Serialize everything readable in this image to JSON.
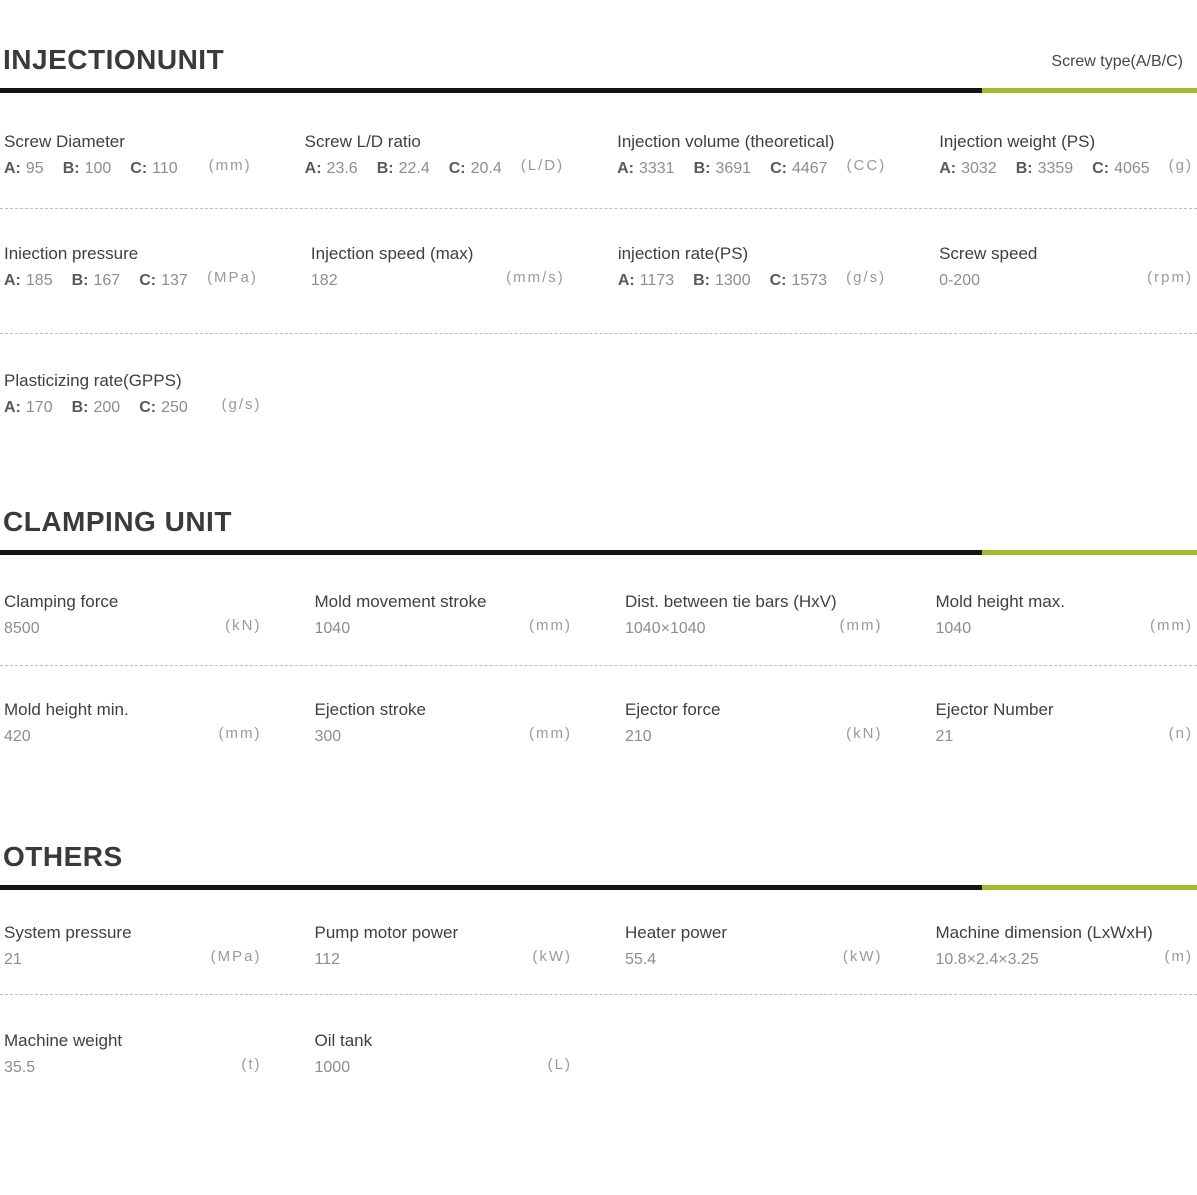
{
  "page": {
    "screw_type_note": "Screw type(A/B/C)",
    "accent_color": "#9dbe2b",
    "rule_color": "#141414"
  },
  "abc_prefixes": {
    "a": "A:",
    "b": "B:",
    "c": "C:"
  },
  "sections": [
    {
      "title": "INJECTIONUNIT",
      "rows": [
        [
          {
            "label": "Screw Diameter",
            "a": "95",
            "b": "100",
            "c": "110",
            "unit": "(mm)"
          },
          {
            "label": "Screw L/D ratio",
            "a": "23.6",
            "b": "22.4",
            "c": "20.4",
            "unit": "(L/D)"
          },
          {
            "label": "Injection volume (theoretical)",
            "a": "3331",
            "b": "3691",
            "c": "4467",
            "unit": "(CC)"
          },
          {
            "label": "Injection weight (PS)",
            "a": "3032",
            "b": "3359",
            "c": "4065",
            "unit": "(g)"
          }
        ],
        [
          {
            "label": "Iniection pressure",
            "a": "185",
            "b": "167",
            "c": "137",
            "unit": "(MPa)"
          },
          {
            "label": "Injection speed (max)",
            "value": "182",
            "unit": "(mm/s)"
          },
          {
            "label": "injection rate(PS)",
            "a": "1173",
            "b": "1300",
            "c": "1573",
            "unit": "(g/s)"
          },
          {
            "label": "Screw speed",
            "value": "0-200",
            "unit": "(rpm)"
          }
        ],
        [
          {
            "label": "Plasticizing rate(GPPS)",
            "a": "170",
            "b": "200",
            "c": "250",
            "unit": "(g/s)"
          }
        ]
      ]
    },
    {
      "title": "CLAMPING UNIT",
      "rows": [
        [
          {
            "label": "Clamping force",
            "value": "8500",
            "unit": "(kN)"
          },
          {
            "label": "Mold movement stroke",
            "value": "1040",
            "unit": "(mm)"
          },
          {
            "label": "Dist. between tie bars (HxV)",
            "value": "1040×1040",
            "unit": "(mm)"
          },
          {
            "label": "Mold height max.",
            "value": "1040",
            "unit": "(mm)"
          }
        ],
        [
          {
            "label": "Mold height min.",
            "value": "420",
            "unit": "(mm)"
          },
          {
            "label": "Ejection stroke",
            "value": "300",
            "unit": "(mm)"
          },
          {
            "label": "Ejector force",
            "value": "210",
            "unit": "(kN)"
          },
          {
            "label": "Ejector Number",
            "value": "21",
            "unit": "(n)"
          }
        ]
      ]
    },
    {
      "title": "OTHERS",
      "rows": [
        [
          {
            "label": "System pressure",
            "value": "21",
            "unit": "(MPa)"
          },
          {
            "label": "Pump motor power",
            "value": "112",
            "unit": "(kW)"
          },
          {
            "label": "Heater power",
            "value": "55.4",
            "unit": "(kW)"
          },
          {
            "label": "Machine dimension (LxWxH)",
            "value": "10.8×2.4×3.25",
            "unit": "(m)"
          }
        ],
        [
          {
            "label": "Machine weight",
            "value": "35.5",
            "unit": "(t)"
          },
          {
            "label": "Oil tank",
            "value": "1000",
            "unit": "(L)"
          }
        ]
      ]
    }
  ]
}
